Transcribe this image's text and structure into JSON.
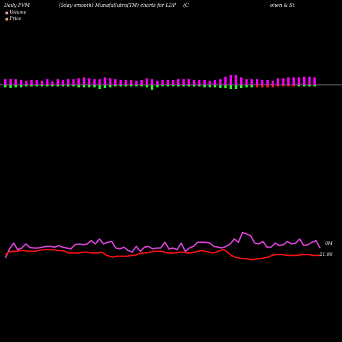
{
  "header": {
    "left": "Daily PVM",
    "mid": "(5day smooth) MunafaSutra(TM) charts for LDP",
    "right_a": "(C",
    "right_b": "ohen & St"
  },
  "legend": [
    {
      "label": "Volume",
      "color": "#ff9999"
    },
    {
      "label": "Price",
      "color": "#ff9966"
    }
  ],
  "colors": {
    "pos_bar": "#ff00ff",
    "neg_bar": "#33ff33",
    "neg_bar_red": "#ff2222",
    "volume_line": "#dd44dd",
    "price_line": "#ff1111",
    "baseline": "#ffffff"
  },
  "labels": {
    "volume_value": "0M",
    "price_value": "21.98"
  },
  "chart_data": [
    {
      "type": "bar",
      "series": [
        {
          "name": "",
          "values": [
            0.7,
            0.7,
            0.7,
            0.6,
            0.5,
            0.6,
            0.6,
            0.5,
            0.7,
            0.4,
            0.7,
            0.6,
            0.7,
            0.7,
            0.8,
            0.9,
            0.8,
            0.7,
            0.7,
            0.9,
            0.8,
            0.7,
            0.6,
            0.6,
            0.6,
            0.5,
            0.6,
            0.8,
            0.7,
            0.5,
            0.6,
            0.6,
            0.6,
            0.7,
            0.7,
            0.7,
            0.6,
            0.6,
            0.6,
            0.5,
            0.6,
            0.7,
            1.0,
            1.2,
            1.2,
            0.9,
            0.7,
            0.7,
            0.7,
            0.6,
            0.6,
            0.5,
            0.8,
            0.8,
            0.9,
            0.9,
            0.9,
            1.0,
            1.0,
            0.9
          ],
          "neg_values": [
            -0.3,
            -0.4,
            -0.3,
            -0.3,
            -0.2,
            -0.2,
            -0.2,
            -0.2,
            -0.2,
            -0.2,
            -0.2,
            -0.2,
            -0.2,
            -0.2,
            -0.3,
            -0.3,
            -0.3,
            -0.3,
            -0.5,
            -0.4,
            -0.3,
            -0.2,
            -0.2,
            -0.2,
            -0.2,
            -0.2,
            -0.2,
            -0.3,
            -0.6,
            -0.3,
            -0.2,
            -0.2,
            -0.2,
            -0.2,
            -0.2,
            -0.2,
            -0.2,
            -0.2,
            -0.3,
            -0.3,
            -0.3,
            -0.4,
            -0.4,
            -0.5,
            -0.5,
            -0.4,
            -0.3,
            -0.3,
            -0.3,
            -0.3,
            -0.3,
            -0.3,
            -0.2,
            -0.2,
            -0.2,
            -0.2,
            -0.2,
            -0.2,
            -0.2,
            -0.2
          ]
        }
      ]
    },
    {
      "type": "line",
      "series": [
        {
          "name": "Volume",
          "values": [
            3.0,
            5.2,
            6.6,
            5.0,
            5.4,
            6.4,
            5.5,
            5.4,
            5.4,
            5.6,
            5.8,
            5.8,
            5.6,
            6.0,
            5.6,
            5.4,
            5.2,
            6.2,
            6.4,
            6.2,
            6.4,
            7.2,
            6.4,
            7.6,
            6.4,
            6.8,
            7.0,
            5.4,
            5.2,
            5.6,
            4.8,
            4.4,
            5.8,
            4.6,
            5.6,
            5.8,
            5.2,
            5.4,
            5.4,
            6.8,
            5.2,
            5.4,
            5.0,
            6.6,
            4.6,
            5.4,
            5.8,
            6.8,
            6.8,
            6.8,
            6.6,
            5.8,
            5.6,
            5.4,
            5.8,
            6.4,
            7.6,
            6.8,
            9.2,
            8.8,
            8.4,
            6.6,
            6.4,
            7.0,
            5.6,
            5.6,
            6.6,
            6.0,
            6.2,
            7.0,
            6.4,
            6.6,
            7.6,
            6.0,
            6.2,
            6.8,
            7.2,
            5.4
          ]
        },
        {
          "name": "Price",
          "values": [
            3.8,
            4.4,
            4.6,
            4.6,
            4.8,
            4.8,
            4.6,
            4.6,
            4.6,
            4.8,
            5.0,
            5.0,
            5.0,
            5.0,
            4.8,
            4.8,
            4.6,
            4.2,
            4.2,
            4.2,
            4.2,
            4.4,
            4.4,
            4.2,
            4.2,
            4.2,
            4.4,
            3.8,
            3.4,
            3.2,
            3.4,
            3.4,
            3.4,
            3.4,
            3.6,
            3.6,
            4.0,
            4.2,
            4.2,
            4.4,
            4.6,
            4.6,
            4.6,
            4.4,
            4.2,
            4.2,
            4.2,
            4.4,
            4.4,
            4.2,
            4.2,
            4.4,
            4.6,
            4.8,
            4.6,
            4.4,
            4.2,
            4.4,
            4.8,
            5.0,
            4.4,
            3.6,
            3.2,
            3.0,
            2.8,
            2.8,
            2.6,
            2.6,
            2.8,
            2.8,
            3.0,
            3.2,
            3.6,
            3.8,
            3.8,
            3.8,
            3.6,
            3.6,
            3.6,
            3.6,
            3.8,
            3.8,
            3.8,
            3.6,
            3.6,
            3.6
          ]
        }
      ]
    }
  ]
}
